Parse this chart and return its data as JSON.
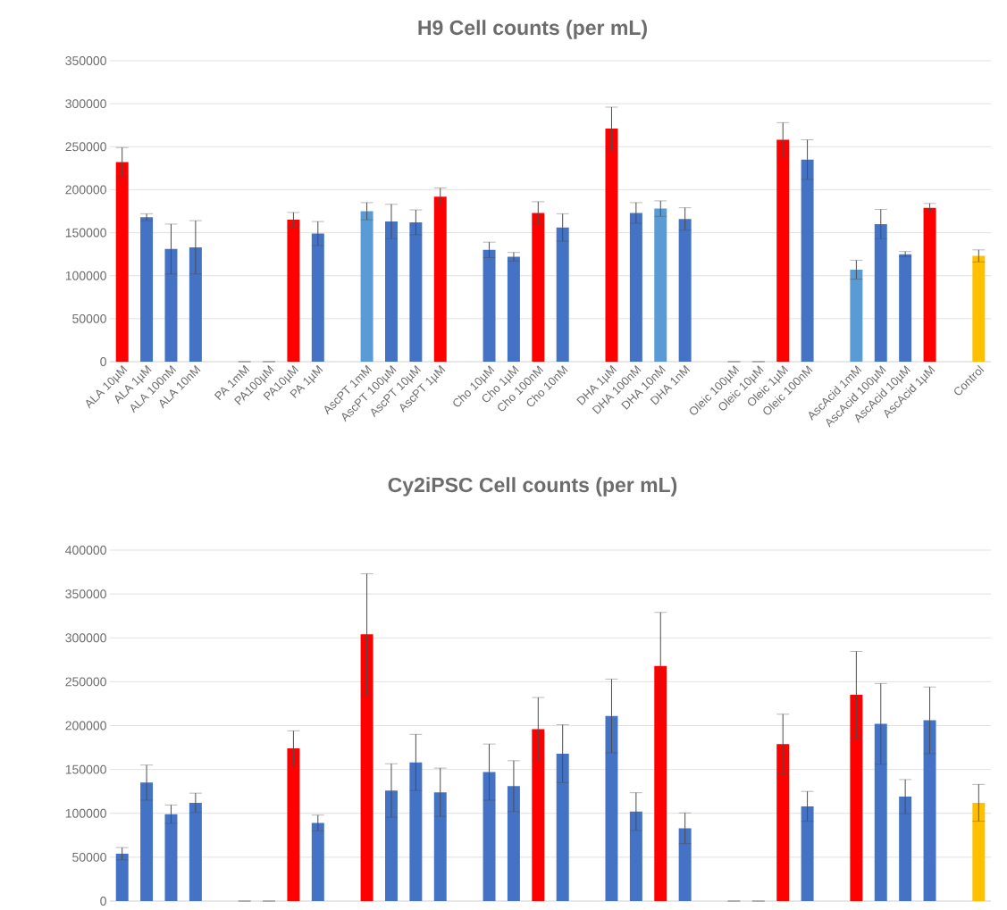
{
  "chart_data": [
    {
      "type": "bar",
      "title": "H9 Cell counts (per mL)",
      "categories": [
        "ALA 10µM",
        "ALA 1µM",
        "ALA 100nM",
        "ALA 10nM",
        null,
        "PA 1mM",
        "PA100µM",
        "PA10µM",
        "PA 1µM",
        null,
        "AscPT 1mM",
        "AscPT 100µM",
        "AscPT 10µM",
        "AscPT 1µM",
        null,
        "Cho 10µM",
        "Cho 1µM",
        "Cho 100nM",
        "Cho 10nM",
        null,
        "DHA 1µM",
        "DHA 100nM",
        "DHA 10nM",
        "DHA 1nM",
        null,
        "Oleic 100µM",
        "Oleic 10µM",
        "Oleic 1µM",
        "Oleic 100nM",
        null,
        "AscAcid 1mM",
        "AscAcid 100µM",
        "AscAcid 10µM",
        "AscAcid 1µM",
        null,
        "Control"
      ],
      "values": [
        232000,
        168000,
        131000,
        133000,
        null,
        0,
        0,
        165000,
        149000,
        null,
        175000,
        163000,
        162000,
        192000,
        null,
        130000,
        122000,
        173000,
        156000,
        null,
        271000,
        173000,
        178000,
        166000,
        null,
        0,
        0,
        258000,
        235000,
        null,
        107000,
        160000,
        125000,
        179000,
        null,
        123000
      ],
      "errors": [
        17000,
        4000,
        29000,
        31000,
        null,
        0,
        0,
        8500,
        14000,
        null,
        10000,
        20000,
        14500,
        10000,
        null,
        9000,
        5000,
        13000,
        16000,
        null,
        25000,
        12000,
        9000,
        13000,
        null,
        0,
        0,
        20000,
        23000,
        null,
        11000,
        17000,
        3000,
        5000,
        null,
        7000
      ],
      "colors": [
        "#ff0000",
        "#4472c4",
        "#4472c4",
        "#4472c4",
        null,
        "#4472c4",
        "#4472c4",
        "#ff0000",
        "#4472c4",
        null,
        "#5b9bd5",
        "#4472c4",
        "#4472c4",
        "#ff0000",
        null,
        "#4472c4",
        "#4472c4",
        "#ff0000",
        "#4472c4",
        null,
        "#ff0000",
        "#4472c4",
        "#5b9bd5",
        "#4472c4",
        null,
        "#4472c4",
        "#4472c4",
        "#ff0000",
        "#4472c4",
        null,
        "#5b9bd5",
        "#4472c4",
        "#4472c4",
        "#ff0000",
        null,
        "#ffc000"
      ],
      "ylim": [
        0,
        350000
      ],
      "yticks": [
        0,
        50000,
        100000,
        150000,
        200000,
        250000,
        300000,
        350000
      ],
      "grid": "y"
    },
    {
      "type": "bar",
      "title": "Cy2iPSC Cell counts (per mL)",
      "categories": [
        null,
        null,
        null,
        null,
        null,
        null,
        null,
        null,
        null,
        null,
        null,
        null,
        null,
        null,
        null,
        null,
        null,
        null,
        null,
        null,
        null,
        null,
        null,
        null,
        null,
        null,
        null,
        null,
        null,
        null,
        null,
        null,
        null,
        null,
        null,
        null
      ],
      "values": [
        54000,
        135000,
        99000,
        112000,
        null,
        0,
        0,
        174000,
        89000,
        null,
        304000,
        126000,
        158000,
        124000,
        null,
        147000,
        131000,
        196000,
        168000,
        null,
        211000,
        102000,
        268000,
        83000,
        null,
        0,
        0,
        179000,
        108000,
        null,
        235000,
        202000,
        119000,
        206000,
        null,
        112000
      ],
      "errors": [
        7000,
        20000,
        10500,
        11000,
        null,
        0,
        0,
        20000,
        9000,
        null,
        69000,
        30500,
        32000,
        27500,
        null,
        32000,
        29000,
        36000,
        33000,
        null,
        42000,
        21500,
        61000,
        17500,
        null,
        0,
        0,
        34000,
        17000,
        null,
        49500,
        46000,
        19500,
        38000,
        null,
        21000
      ],
      "colors": [
        "#4472c4",
        "#4472c4",
        "#4472c4",
        "#4472c4",
        null,
        "#4472c4",
        "#4472c4",
        "#ff0000",
        "#4472c4",
        null,
        "#ff0000",
        "#4472c4",
        "#4472c4",
        "#4472c4",
        null,
        "#4472c4",
        "#4472c4",
        "#ff0000",
        "#4472c4",
        null,
        "#4472c4",
        "#4472c4",
        "#ff0000",
        "#4472c4",
        null,
        "#4472c4",
        "#4472c4",
        "#ff0000",
        "#4472c4",
        null,
        "#ff0000",
        "#4472c4",
        "#4472c4",
        "#4472c4",
        null,
        "#ffc000"
      ],
      "ylim": [
        0,
        400000
      ],
      "yticks": [
        0,
        50000,
        100000,
        150000,
        200000,
        250000,
        300000,
        350000,
        400000
      ],
      "grid": "y"
    }
  ]
}
